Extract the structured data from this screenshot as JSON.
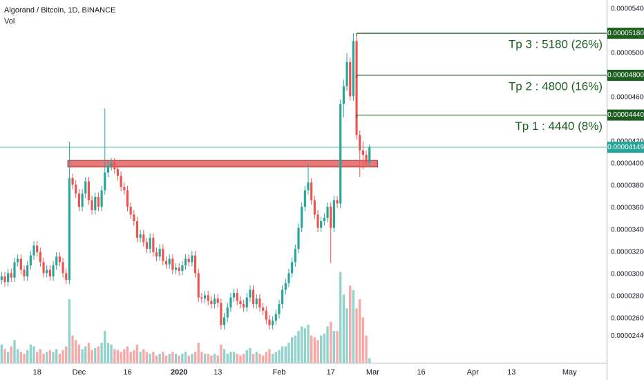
{
  "chart_data": {
    "type": "candlestick",
    "title": "Algorand / Bitcoin, 1D, BINANCE",
    "subtitle": "Vol",
    "colors": {
      "up": "#26a69a",
      "down": "#ef5350",
      "level": "#1b5e20",
      "last": "#26a69a",
      "zone": "#e06060"
    },
    "categories": [
      null,
      null,
      null,
      null,
      null,
      null,
      null,
      null,
      null,
      null,
      null,
      "18",
      null,
      null,
      null,
      null,
      null,
      null,
      null,
      null,
      null,
      null,
      null,
      null,
      "Dec",
      null,
      null,
      null,
      null,
      null,
      null,
      null,
      null,
      null,
      null,
      null,
      null,
      null,
      null,
      "16",
      null,
      null,
      null,
      null,
      null,
      null,
      null,
      null,
      null,
      null,
      null,
      null,
      null,
      null,
      null,
      "2020",
      null,
      null,
      null,
      null,
      null,
      null,
      null,
      null,
      null,
      null,
      null,
      "13",
      null,
      null,
      null,
      null,
      null,
      null,
      null,
      null,
      null,
      null,
      null,
      null,
      null,
      null,
      null,
      null,
      null,
      null,
      "Feb",
      null,
      null,
      null,
      null,
      null,
      null,
      null,
      null,
      null,
      null,
      null,
      null,
      null,
      null,
      null,
      "17",
      null,
      null,
      null,
      null,
      null,
      null,
      null,
      null,
      null,
      null,
      null,
      null,
      "Mar",
      null,
      null,
      null,
      null,
      null,
      null,
      null,
      null,
      null,
      null,
      null,
      null,
      null,
      null,
      "16",
      null,
      null,
      null,
      null,
      null,
      null,
      null,
      null,
      null,
      null,
      null,
      null,
      null,
      null,
      null,
      "Apr",
      null,
      null,
      null,
      null,
      null,
      null,
      null,
      null,
      null,
      null,
      null,
      "13",
      null,
      null,
      null,
      null,
      null,
      null,
      null,
      null,
      null,
      null,
      null,
      null,
      null,
      null,
      null,
      null,
      null,
      "May",
      null,
      null,
      null,
      null,
      null,
      null,
      null,
      null,
      null,
      null,
      null
    ],
    "open": [
      2.95e-05,
      2.98e-05,
      2.93e-05,
      3.01e-05,
      2.97e-05,
      3.11e-05,
      3.14e-05,
      3.04e-05,
      2.98e-05,
      3.08e-05,
      3.17e-05,
      3.26e-05,
      3.2e-05,
      3.11e-05,
      3.01e-05,
      3.04e-05,
      2.98e-05,
      3.08e-05,
      3.16e-05,
      3.11e-05,
      3.01e-05,
      2.95e-05,
      3.87e-05,
      3.81e-05,
      3.73e-05,
      3.61e-05,
      3.73e-05,
      3.84e-05,
      3.67e-05,
      3.58e-05,
      3.7e-05,
      3.61e-05,
      3.76e-05,
      3.92e-05,
      3.98e-05,
      4.01e-05,
      3.95e-05,
      3.89e-05,
      3.79e-05,
      3.76e-05,
      3.61e-05,
      3.54e-05,
      3.48e-05,
      3.33e-05,
      3.36e-05,
      3.29e-05,
      3.23e-05,
      3.33e-05,
      3.2e-05,
      3.16e-05,
      3.23e-05,
      3.12e-05,
      3.09e-05,
      3.14e-05,
      3.04e-05,
      3.06e-05,
      3.03e-05,
      3.08e-05,
      3.14e-05,
      3.11e-05,
      3.17e-05,
      3.01e-05,
      2.79e-05,
      2.78e-05,
      2.81e-05,
      2.76e-05,
      2.73e-05,
      2.78e-05,
      2.74e-05,
      2.54e-05,
      2.61e-05,
      2.7e-05,
      2.79e-05,
      2.83e-05,
      2.76e-05,
      2.73e-05,
      2.7e-05,
      2.79e-05,
      2.86e-05,
      2.73e-05,
      2.78e-05,
      2.7e-05,
      2.67e-05,
      2.59e-05,
      2.54e-05,
      2.58e-05,
      2.64e-05,
      2.73e-05,
      2.86e-05,
      2.92e-05,
      3.01e-05,
      3.11e-05,
      3.23e-05,
      3.42e-05,
      3.61e-05,
      3.76e-05,
      3.83e-05,
      3.67e-05,
      3.54e-05,
      3.42e-05,
      3.48e-05,
      3.51e-05,
      3.61e-05,
      3.42e-05,
      3.67e-05,
      3.64e-05,
      4.54e-05,
      4.7e-05,
      4.92e-05,
      4.61e-05,
      5.11e-05,
      4.26e-05,
      4.12e-05,
      4.08e-05,
      4.01e-05,
      null,
      null,
      null,
      null,
      null,
      null,
      null,
      null,
      null,
      null,
      null,
      null,
      null,
      null,
      null,
      null,
      null,
      null,
      null,
      null,
      null,
      null,
      null,
      null,
      null,
      null,
      null,
      null,
      null,
      null,
      null,
      null,
      null,
      null,
      null,
      null,
      null,
      null,
      null,
      null,
      null,
      null,
      null,
      null,
      null,
      null,
      null,
      null,
      null,
      null,
      null,
      null,
      null,
      null,
      null,
      null,
      null,
      null,
      null,
      null,
      null,
      null,
      null,
      null,
      null,
      null,
      null,
      null,
      null,
      null,
      null,
      null,
      null
    ],
    "high": [
      3.02e-05,
      3.02e-05,
      3.05e-05,
      3.05e-05,
      3.15e-05,
      3.18e-05,
      3.18e-05,
      3.08e-05,
      3.12e-05,
      3.21e-05,
      3.3e-05,
      3.3e-05,
      3.24e-05,
      3.15e-05,
      3.08e-05,
      3.08e-05,
      3.12e-05,
      3.2e-05,
      3.2e-05,
      3.15e-05,
      3.05e-05,
      4.2e-05,
      3.91e-05,
      3.85e-05,
      3.77e-05,
      3.77e-05,
      3.88e-05,
      3.88e-05,
      3.71e-05,
      3.74e-05,
      3.74e-05,
      3.8e-05,
      4.5e-05,
      4.02e-05,
      4.05e-05,
      4.05e-05,
      3.99e-05,
      3.93e-05,
      3.83e-05,
      3.8e-05,
      3.65e-05,
      3.58e-05,
      3.52e-05,
      3.4e-05,
      3.4e-05,
      3.33e-05,
      3.37e-05,
      3.37e-05,
      3.24e-05,
      3.27e-05,
      3.27e-05,
      3.16e-05,
      3.18e-05,
      3.18e-05,
      3.1e-05,
      3.1e-05,
      3.12e-05,
      3.18e-05,
      3.18e-05,
      3.21e-05,
      3.21e-05,
      3.05e-05,
      2.83e-05,
      2.85e-05,
      2.85e-05,
      2.8e-05,
      2.82e-05,
      2.82e-05,
      2.78e-05,
      2.65e-05,
      2.74e-05,
      2.83e-05,
      2.87e-05,
      2.87e-05,
      2.8e-05,
      2.77e-05,
      2.83e-05,
      2.9e-05,
      2.9e-05,
      2.82e-05,
      2.82e-05,
      2.74e-05,
      2.71e-05,
      2.63e-05,
      2.62e-05,
      2.68e-05,
      2.77e-05,
      2.9e-05,
      2.96e-05,
      3.05e-05,
      3.15e-05,
      3.27e-05,
      3.46e-05,
      3.65e-05,
      3.8e-05,
      4e-05,
      3.87e-05,
      3.71e-05,
      3.58e-05,
      3.52e-05,
      3.55e-05,
      3.65e-05,
      3.65e-05,
      3.71e-05,
      3.71e-05,
      4.58e-05,
      4.76e-05,
      5e-05,
      4.96e-05,
      5.18e-05,
      5.18e-05,
      4.3e-05,
      4.2e-05,
      4.12e-05,
      4.17e-05,
      null,
      null,
      null,
      null,
      null,
      null,
      null,
      null,
      null,
      null,
      null,
      null,
      null,
      null,
      null,
      null,
      null,
      null,
      null,
      null,
      null,
      null,
      null,
      null,
      null,
      null,
      null,
      null,
      null,
      null,
      null,
      null,
      null,
      null,
      null,
      null,
      null,
      null,
      null,
      null,
      null,
      null,
      null,
      null,
      null,
      null,
      null,
      null,
      null,
      null,
      null,
      null,
      null,
      null,
      null,
      null,
      null,
      null,
      null,
      null,
      null,
      null,
      null,
      null,
      null,
      null,
      null,
      null,
      null,
      null,
      null,
      null,
      null
    ],
    "low": [
      2.91e-05,
      2.89e-05,
      2.89e-05,
      2.93e-05,
      2.93e-05,
      3.07e-05,
      3e-05,
      2.94e-05,
      2.94e-05,
      3.04e-05,
      3.13e-05,
      3.16e-05,
      3.07e-05,
      2.97e-05,
      2.97e-05,
      2.94e-05,
      2.94e-05,
      3.04e-05,
      3.07e-05,
      2.97e-05,
      2.91e-05,
      2.91e-05,
      3.77e-05,
      3.69e-05,
      3.57e-05,
      3.57e-05,
      3.69e-05,
      3.63e-05,
      3.54e-05,
      3.54e-05,
      3.57e-05,
      3.57e-05,
      3.72e-05,
      3.88e-05,
      3.94e-05,
      3.91e-05,
      3.85e-05,
      3.75e-05,
      3.72e-05,
      3.57e-05,
      3.5e-05,
      3.44e-05,
      3.29e-05,
      3.29e-05,
      3.25e-05,
      3.19e-05,
      3.19e-05,
      3.16e-05,
      3.12e-05,
      3.12e-05,
      3.08e-05,
      3.05e-05,
      3.05e-05,
      3e-05,
      3e-05,
      2.99e-05,
      2.99e-05,
      3.04e-05,
      3.07e-05,
      3.07e-05,
      2.97e-05,
      2.75e-05,
      2.74e-05,
      2.74e-05,
      2.72e-05,
      2.69e-05,
      2.69e-05,
      2.7e-05,
      2.5e-05,
      2.5e-05,
      2.57e-05,
      2.66e-05,
      2.75e-05,
      2.72e-05,
      2.69e-05,
      2.66e-05,
      2.66e-05,
      2.75e-05,
      2.69e-05,
      2.69e-05,
      2.66e-05,
      2.63e-05,
      2.55e-05,
      2.5e-05,
      2.5e-05,
      2.54e-05,
      2.6e-05,
      2.69e-05,
      2.82e-05,
      2.88e-05,
      2.97e-05,
      3.07e-05,
      3.19e-05,
      3.38e-05,
      3.57e-05,
      3.72e-05,
      3.63e-05,
      3.5e-05,
      3.38e-05,
      3.38e-05,
      3.44e-05,
      3.47e-05,
      3.1e-05,
      3.38e-05,
      3.6e-05,
      3.6e-05,
      4.42e-05,
      4.66e-05,
      4.57e-05,
      4.57e-05,
      4.22e-05,
      3.88e-05,
      3.95e-05,
      3.97e-05,
      3.97e-05,
      null,
      null,
      null,
      null,
      null,
      null,
      null,
      null,
      null,
      null,
      null,
      null,
      null,
      null,
      null,
      null,
      null,
      null,
      null,
      null,
      null,
      null,
      null,
      null,
      null,
      null,
      null,
      null,
      null,
      null,
      null,
      null,
      null,
      null,
      null,
      null,
      null,
      null,
      null,
      null,
      null,
      null,
      null,
      null,
      null,
      null,
      null,
      null,
      null,
      null,
      null,
      null,
      null,
      null,
      null,
      null,
      null,
      null,
      null,
      null,
      null,
      null,
      null,
      null,
      null,
      null,
      null,
      null,
      null,
      null,
      null,
      null,
      null
    ],
    "close": [
      2.98e-05,
      2.93e-05,
      3.01e-05,
      2.97e-05,
      3.11e-05,
      3.14e-05,
      3.04e-05,
      2.98e-05,
      3.08e-05,
      3.17e-05,
      3.26e-05,
      3.2e-05,
      3.11e-05,
      3.01e-05,
      3.04e-05,
      2.98e-05,
      3.08e-05,
      3.16e-05,
      3.11e-05,
      3.01e-05,
      2.95e-05,
      3.87e-05,
      3.81e-05,
      3.73e-05,
      3.61e-05,
      3.73e-05,
      3.84e-05,
      3.67e-05,
      3.58e-05,
      3.7e-05,
      3.61e-05,
      3.76e-05,
      3.92e-05,
      3.98e-05,
      4.01e-05,
      3.95e-05,
      3.89e-05,
      3.79e-05,
      3.76e-05,
      3.61e-05,
      3.54e-05,
      3.48e-05,
      3.33e-05,
      3.36e-05,
      3.29e-05,
      3.23e-05,
      3.33e-05,
      3.2e-05,
      3.16e-05,
      3.23e-05,
      3.12e-05,
      3.09e-05,
      3.14e-05,
      3.04e-05,
      3.06e-05,
      3.03e-05,
      3.08e-05,
      3.14e-05,
      3.11e-05,
      3.17e-05,
      3.01e-05,
      2.79e-05,
      2.78e-05,
      2.81e-05,
      2.76e-05,
      2.73e-05,
      2.78e-05,
      2.74e-05,
      2.54e-05,
      2.61e-05,
      2.7e-05,
      2.79e-05,
      2.83e-05,
      2.76e-05,
      2.73e-05,
      2.7e-05,
      2.79e-05,
      2.86e-05,
      2.73e-05,
      2.78e-05,
      2.7e-05,
      2.67e-05,
      2.59e-05,
      2.54e-05,
      2.58e-05,
      2.64e-05,
      2.73e-05,
      2.86e-05,
      2.92e-05,
      3.01e-05,
      3.11e-05,
      3.23e-05,
      3.42e-05,
      3.61e-05,
      3.76e-05,
      3.83e-05,
      3.67e-05,
      3.54e-05,
      3.42e-05,
      3.48e-05,
      3.51e-05,
      3.61e-05,
      3.42e-05,
      3.67e-05,
      3.64e-05,
      4.54e-05,
      4.7e-05,
      4.92e-05,
      4.61e-05,
      5.11e-05,
      4.26e-05,
      4.12e-05,
      4.08e-05,
      4.01e-05,
      4.149e-05,
      null,
      null,
      null,
      null,
      null,
      null,
      null,
      null,
      null,
      null,
      null,
      null,
      null,
      null,
      null,
      null,
      null,
      null,
      null,
      null,
      null,
      null,
      null,
      null,
      null,
      null,
      null,
      null,
      null,
      null,
      null,
      null,
      null,
      null,
      null,
      null,
      null,
      null,
      null,
      null,
      null,
      null,
      null,
      null,
      null,
      null,
      null,
      null,
      null,
      null,
      null,
      null,
      null,
      null,
      null,
      null,
      null,
      null,
      null,
      null,
      null,
      null,
      null,
      null,
      null,
      null,
      null,
      null,
      null,
      null,
      null,
      null,
      null
    ],
    "volume": [
      20,
      15,
      12,
      18,
      25,
      15,
      12,
      10,
      14,
      20,
      18,
      12,
      15,
      10,
      12,
      14,
      12,
      15,
      10,
      14,
      18,
      70,
      30,
      25,
      20,
      15,
      18,
      22,
      14,
      16,
      18,
      22,
      35,
      22,
      20,
      15,
      14,
      12,
      15,
      18,
      12,
      14,
      20,
      12,
      15,
      12,
      10,
      12,
      8,
      10,
      12,
      8,
      10,
      12,
      10,
      8,
      10,
      12,
      8,
      10,
      12,
      22,
      12,
      10,
      10,
      8,
      10,
      8,
      20,
      15,
      10,
      12,
      12,
      10,
      8,
      10,
      14,
      16,
      10,
      12,
      10,
      8,
      12,
      15,
      10,
      12,
      14,
      18,
      18,
      22,
      28,
      30,
      35,
      40,
      38,
      42,
      30,
      28,
      25,
      30,
      32,
      40,
      45,
      35,
      35,
      100,
      75,
      60,
      85,
      80,
      60,
      70,
      50,
      30,
      5,
      null,
      null,
      null,
      null,
      null,
      null,
      null,
      null,
      null,
      null,
      null,
      null,
      null,
      null,
      null,
      null,
      null,
      null,
      null,
      null,
      null,
      null,
      null,
      null,
      null,
      null,
      null,
      null,
      null,
      null,
      null,
      null,
      null,
      null,
      null,
      null,
      null,
      null,
      null,
      null,
      null,
      null,
      null,
      null,
      null,
      null,
      null,
      null,
      null,
      null,
      null,
      null,
      null,
      null,
      null,
      null,
      null,
      null,
      null,
      null,
      null,
      null,
      null,
      null,
      null,
      null,
      null,
      null,
      null,
      null,
      null,
      null,
      null
    ],
    "ylim": [
      2.231e-05,
      5.481e-05
    ],
    "vlim": [
      0,
      400
    ],
    "yticks": [
      {
        "value": 5.4e-05,
        "label": "0.00005400"
      },
      {
        "value": 5e-05,
        "label": "0.00005000"
      },
      {
        "value": 4.6e-05,
        "label": "0.00004600"
      },
      {
        "value": 4.2e-05,
        "label": "0.00004200"
      },
      {
        "value": 4e-05,
        "label": "0.00004000"
      },
      {
        "value": 3.8e-05,
        "label": "0.00003800"
      },
      {
        "value": 3.6e-05,
        "label": "0.00003600"
      },
      {
        "value": 3.4e-05,
        "label": "0.00003400"
      },
      {
        "value": 3.2e-05,
        "label": "0.00003200"
      },
      {
        "value": 3e-05,
        "label": "0.00003000"
      },
      {
        "value": 2.8e-05,
        "label": "0.00002800"
      },
      {
        "value": 2.6e-05,
        "label": "0.00002600"
      },
      {
        "value": 2.44e-05,
        "label": "0.00002440"
      }
    ],
    "levels": [
      {
        "value": 5.18e-05,
        "label": "0.00005180",
        "text": "Tp 3 : 5180 (26%)"
      },
      {
        "value": 4.8e-05,
        "label": "0.00004800",
        "text": "Tp 2 : 4800 (16%)"
      },
      {
        "value": 4.44e-05,
        "label": "0.00004440",
        "text": "Tp 1 : 4440 (8%)"
      }
    ],
    "last_price": 4.149e-05,
    "zone": [
      3.97e-05,
      4.03e-05
    ]
  }
}
